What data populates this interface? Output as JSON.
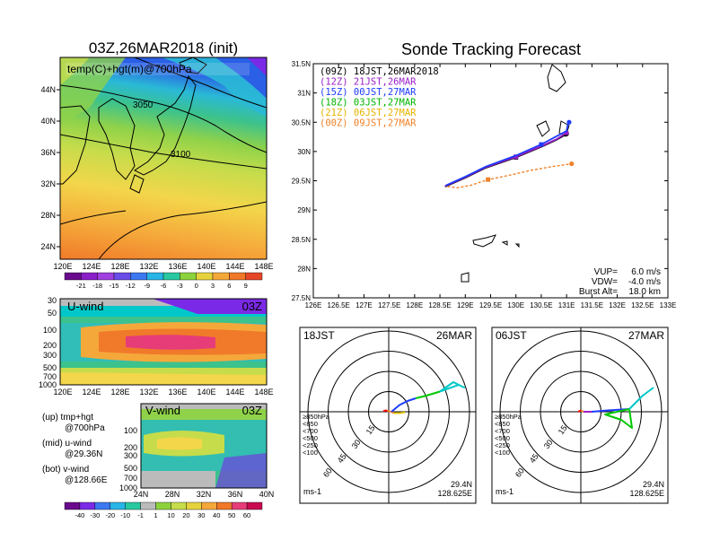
{
  "left": {
    "title": "03Z,26MAR2018 (init)",
    "map": {
      "label": "temp(C)+hgt(m)@700hPa",
      "x_ticks": [
        "120E",
        "124E",
        "128E",
        "132E",
        "136E",
        "140E",
        "144E",
        "148E"
      ],
      "y_ticks": [
        "44N",
        "40N",
        "36N",
        "32N",
        "28N",
        "24N"
      ],
      "contour_labels": [
        "3050",
        "3100"
      ]
    },
    "temp_colorbar": [
      "-21",
      "-18",
      "-15",
      "-12",
      "-9",
      "-6",
      "-3",
      "0",
      "3",
      "6",
      "9"
    ],
    "uwind": {
      "label": "U-wind",
      "time": "03Z",
      "y_ticks": [
        "30",
        "50",
        "100",
        "200",
        "300",
        "500",
        "700",
        "1000"
      ],
      "x_ticks": [
        "120E",
        "124E",
        "128E",
        "132E",
        "136E",
        "140E",
        "144E",
        "148E"
      ]
    },
    "vwind": {
      "label": "V-wind",
      "time": "03Z",
      "y_ticks": [
        "100",
        "200",
        "300",
        "500",
        "700",
        "1000"
      ],
      "x_ticks": [
        "24N",
        "28N",
        "32N",
        "36N",
        "40N"
      ]
    },
    "wind_colorbar": [
      "-40",
      "-30",
      "-20",
      "-10",
      "-1",
      "1",
      "10",
      "20",
      "30",
      "40",
      "50",
      "60"
    ],
    "notes": [
      {
        "key": "(up)",
        "text": "tmp+hgt",
        "sub": "@700hPa"
      },
      {
        "key": "(mid)",
        "text": "u-wind",
        "sub": "@29.36N"
      },
      {
        "key": "(bot)",
        "text": "v-wind",
        "sub": "@128.66E"
      }
    ]
  },
  "chart_data": [
    {
      "type": "line",
      "title": "Sonde Tracking Forecast",
      "xlim": [
        126,
        133
      ],
      "ylim": [
        27.5,
        31.5
      ],
      "x_ticks": [
        "126E",
        "126.5E",
        "127E",
        "127.5E",
        "128E",
        "128.5E",
        "129E",
        "129.5E",
        "130E",
        "130.5E",
        "131E",
        "131.5E",
        "132E",
        "132.5E",
        "133E"
      ],
      "y_ticks": [
        "31.5N",
        "31N",
        "30.5N",
        "30N",
        "29.5N",
        "29N",
        "28.5N",
        "28N",
        "27.5N"
      ],
      "legend_placement": "top-left",
      "series": [
        {
          "name": "(09Z)  18JST,26MAR2018",
          "color": "#000000",
          "x": [
            128.6,
            129.0,
            129.4,
            130.0,
            130.5,
            130.8,
            131.0
          ],
          "y": [
            29.4,
            29.55,
            29.72,
            29.9,
            30.08,
            30.2,
            30.3
          ]
        },
        {
          "name": "(12Z)  21JST,26MAR",
          "color": "#9a1ec8",
          "x": [
            128.6,
            129.0,
            129.4,
            130.0,
            130.5,
            130.8,
            131.0
          ],
          "y": [
            29.41,
            29.56,
            29.73,
            29.91,
            30.09,
            30.21,
            30.32
          ]
        },
        {
          "name": "(15Z)  00JST,27MAR",
          "color": "#1e3cff",
          "x": [
            128.62,
            129.0,
            129.4,
            130.0,
            130.5,
            130.8,
            131.0,
            131.02,
            131.05
          ],
          "y": [
            29.42,
            29.57,
            29.74,
            29.93,
            30.12,
            30.26,
            30.35,
            30.45,
            30.5
          ]
        },
        {
          "name": "(18Z)  03JST,27MAR",
          "color": "#00b400",
          "x": [],
          "y": []
        },
        {
          "name": "(21Z)  06JST,27MAR",
          "color": "#e6b400",
          "x": [],
          "y": []
        },
        {
          "name": "(00Z)  09JST,27MAR",
          "color": "#f08228",
          "x": [
            128.65,
            128.85,
            129.1,
            129.45,
            129.9,
            130.3,
            130.7,
            131.1
          ],
          "y": [
            29.4,
            29.38,
            29.42,
            29.52,
            29.6,
            29.68,
            29.74,
            29.79
          ]
        }
      ],
      "annotations": [
        {
          "label": "VUP=",
          "value": "6.0 m/s"
        },
        {
          "label": "VDW=",
          "value": "-4.0 m/s"
        },
        {
          "label": "Burst Alt=",
          "value": "18.0 km"
        }
      ]
    },
    {
      "type": "polar_hodograph",
      "left_label": "18JST",
      "right_label": "26MAR",
      "ring_labels": [
        "15",
        "30",
        "45",
        "60"
      ],
      "units": "ms-1",
      "lat": "29.4N",
      "lon": "128.625E",
      "legend": [
        {
          "label": "≥850hPa",
          "color": "#ff0000"
        },
        {
          "label": "<850",
          "color": "#f08228"
        },
        {
          "label": "<700",
          "color": "#e6c800"
        },
        {
          "label": "<500",
          "color": "#00c800"
        },
        {
          "label": "<250",
          "color": "#00c8c8"
        },
        {
          "label": "<100",
          "color": "#1e3cff"
        }
      ],
      "segments": [
        {
          "color": "#ff0000",
          "points": [
            [
              -4,
              0.5
            ],
            [
              -2,
              1
            ],
            [
              -1,
              0.5
            ]
          ]
        },
        {
          "color": "#f08228",
          "points": [
            [
              -1,
              0.5
            ],
            [
              2,
              0
            ],
            [
              4,
              -1
            ]
          ]
        },
        {
          "color": "#e6c800",
          "points": [
            [
              4,
              -1
            ],
            [
              8,
              -1
            ],
            [
              12,
              -0.5
            ]
          ]
        },
        {
          "color": "#1e3cff",
          "points": [
            [
              2,
              0
            ],
            [
              8,
              5
            ],
            [
              14,
              8
            ],
            [
              20,
              10
            ]
          ]
        },
        {
          "color": "#00c800",
          "points": [
            [
              20,
              10
            ],
            [
              28,
              12
            ],
            [
              38,
              15
            ]
          ]
        },
        {
          "color": "#00c8c8",
          "points": [
            [
              38,
              15
            ],
            [
              52,
              20
            ],
            [
              56,
              18
            ],
            [
              48,
              22
            ],
            [
              38,
              15
            ]
          ]
        }
      ]
    },
    {
      "type": "polar_hodograph",
      "left_label": "06JST",
      "right_label": "27MAR",
      "ring_labels": [
        "15",
        "30",
        "45",
        "60"
      ],
      "units": "ms-1",
      "lat": "29.4N",
      "lon": "128.625E",
      "legend": [
        {
          "label": "≥850hPa",
          "color": "#ff0000"
        },
        {
          "label": "<850",
          "color": "#f08228"
        },
        {
          "label": "<700",
          "color": "#e6c800"
        },
        {
          "label": "<500",
          "color": "#00c800"
        },
        {
          "label": "<250",
          "color": "#00c8c8"
        },
        {
          "label": "<100",
          "color": "#1e3cff"
        }
      ],
      "segments": [
        {
          "color": "#ff0000",
          "points": [
            [
              -2,
              0
            ],
            [
              0,
              1
            ]
          ]
        },
        {
          "color": "#f08228",
          "points": [
            [
              0,
              1
            ],
            [
              2,
              0
            ]
          ]
        },
        {
          "color": "#9a1ec8",
          "points": [
            [
              2,
              0
            ],
            [
              5,
              0
            ],
            [
              8,
              0
            ]
          ]
        },
        {
          "color": "#1e3cff",
          "points": [
            [
              8,
              0
            ],
            [
              20,
              1
            ],
            [
              36,
              2
            ]
          ]
        },
        {
          "color": "#00c800",
          "points": [
            [
              36,
              2
            ],
            [
              38,
              -12
            ],
            [
              30,
              -6
            ],
            [
              18,
              -2
            ],
            [
              36,
              2
            ]
          ]
        },
        {
          "color": "#00c8c8",
          "points": [
            [
              36,
              2
            ],
            [
              46,
              12
            ],
            [
              54,
              18
            ]
          ]
        }
      ]
    }
  ]
}
